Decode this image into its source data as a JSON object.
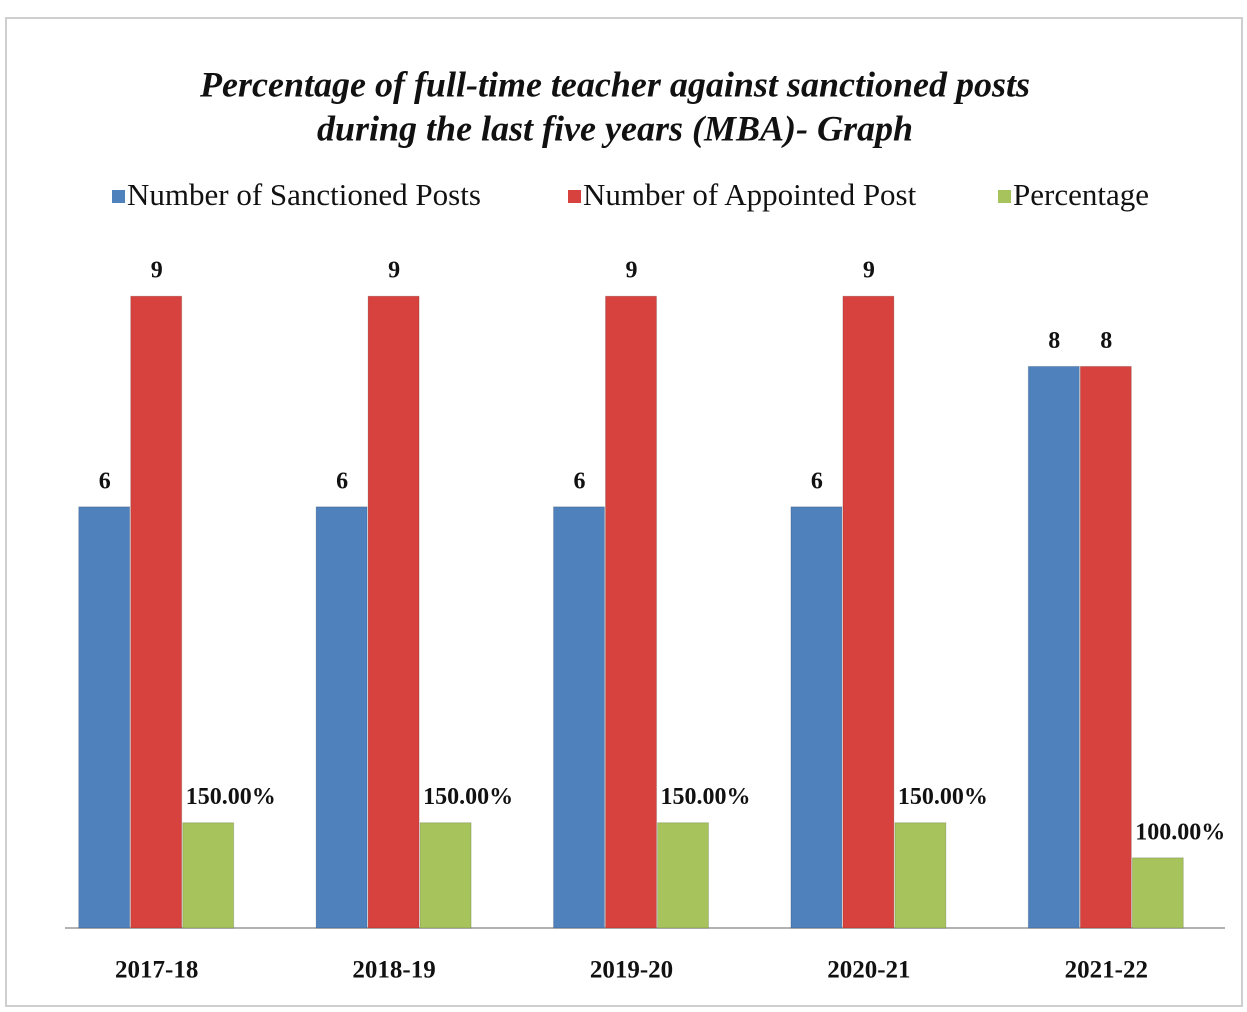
{
  "chart_data": {
    "type": "bar",
    "title": [
      "Percentage of full-time teacher against sanctioned posts",
      "during the last five years (MBA)- Graph"
    ],
    "categories": [
      "2017-18",
      "2018-19",
      "2019-20",
      "2020-21",
      "2021-22"
    ],
    "series": [
      {
        "name": "Number of Sanctioned Posts",
        "color": "#4f81bd",
        "values": [
          6,
          6,
          6,
          6,
          8
        ]
      },
      {
        "name": "Number of Appointed Post",
        "color": "#d8423e",
        "values": [
          9,
          9,
          9,
          9,
          8
        ]
      },
      {
        "name": "Percentage",
        "color": "#a6c35c",
        "axis": "y2",
        "values": [
          150,
          150,
          150,
          150,
          100
        ],
        "value_labels": [
          "150.00%",
          "150.00%",
          "150.00%",
          "150.00%",
          "100.00%"
        ]
      }
    ],
    "ylim": [
      0,
      10
    ],
    "y2lim": [
      0,
      1000
    ],
    "legend": "top"
  }
}
